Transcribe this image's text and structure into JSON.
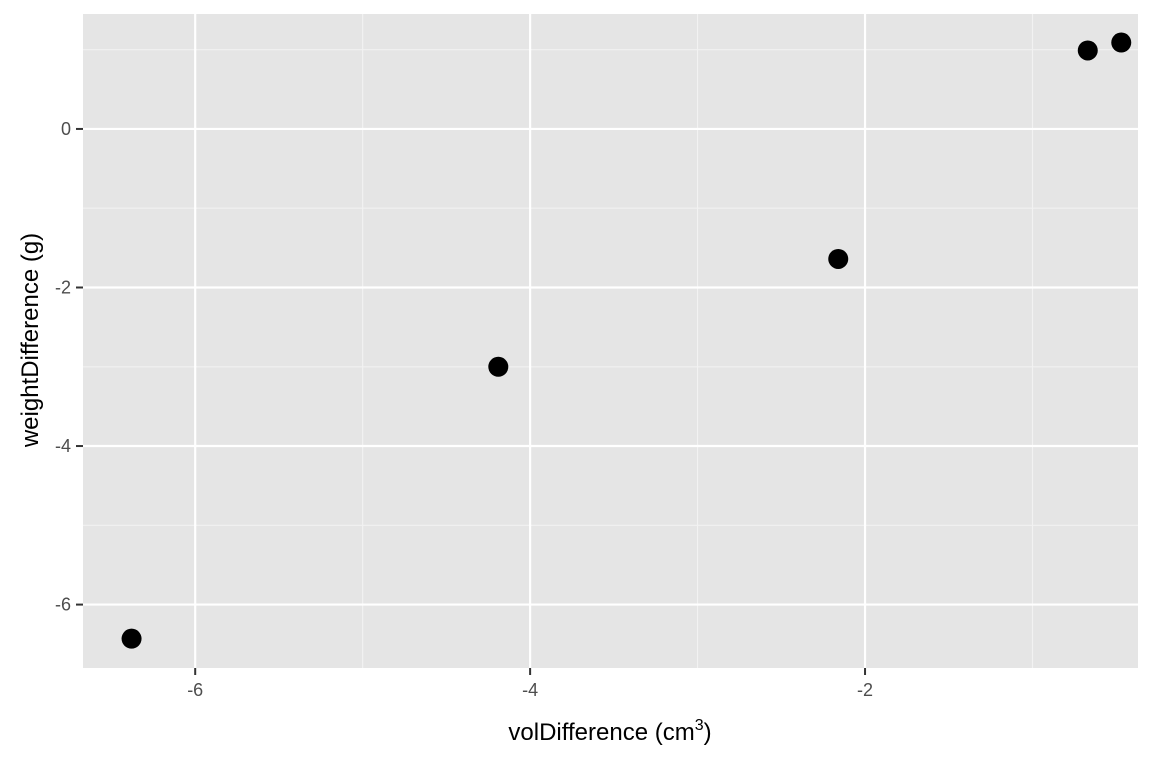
{
  "chart_data": {
    "type": "scatter",
    "title": "",
    "xlabel": "volDifference (cm",
    "xlabel_sup": "3",
    "xlabel_end": ")",
    "ylabel": "weightDifference (g)",
    "xlim": [
      -6.67,
      -0.37
    ],
    "ylim": [
      -6.8,
      1.45
    ],
    "x_ticks": [
      -6,
      -4,
      -2
    ],
    "x_tick_labels": [
      "-6",
      "-4",
      "-2"
    ],
    "x_minor_ticks": [
      -5,
      -3,
      -1
    ],
    "y_ticks": [
      -6,
      -4,
      -2,
      0
    ],
    "y_tick_labels": [
      "-6",
      "-4",
      "-2",
      "0"
    ],
    "y_minor_ticks": [
      -5,
      -3,
      -1,
      1
    ],
    "grid": true,
    "legend": "none",
    "points": [
      {
        "x": -6.38,
        "y": -6.43
      },
      {
        "x": -4.19,
        "y": -3.0
      },
      {
        "x": -2.16,
        "y": -1.64
      },
      {
        "x": -0.67,
        "y": 0.99
      },
      {
        "x": -0.47,
        "y": 1.09
      }
    ],
    "colors": {
      "panel": "#e5e5e5",
      "grid_major": "#ffffff",
      "grid_minor": "#f2f2f2",
      "point": "#000000",
      "tick": "#333333"
    }
  }
}
